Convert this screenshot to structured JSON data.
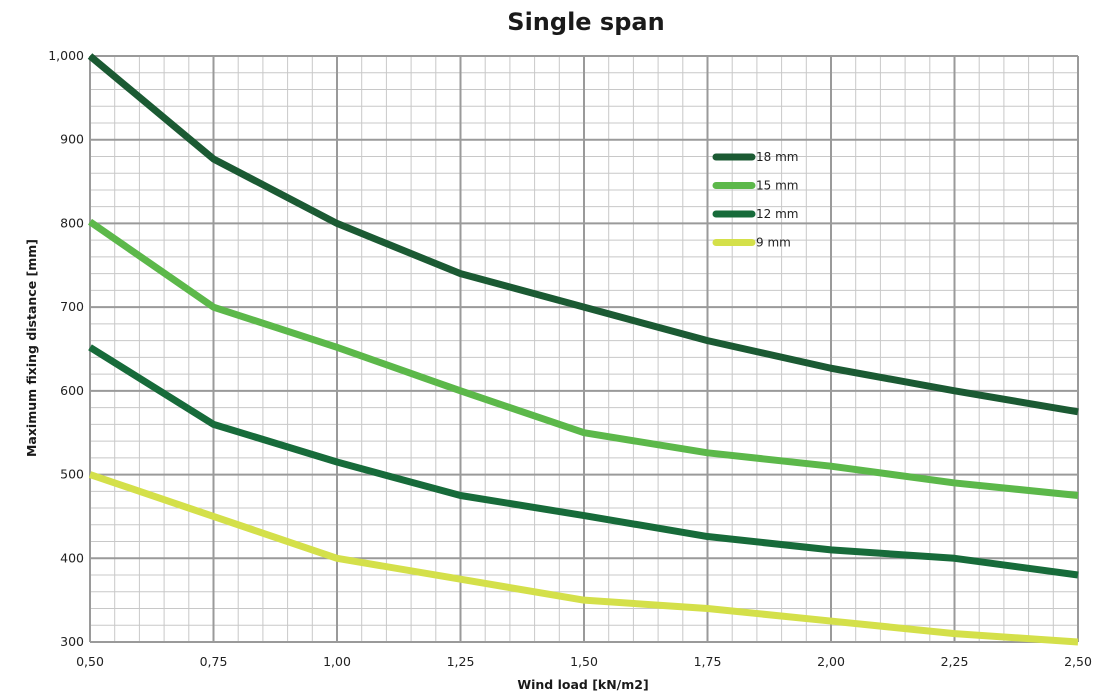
{
  "chart_data": {
    "type": "line",
    "title": "Single span",
    "xlabel": "Wind load [kN/m2]",
    "ylabel": "Maximum fixing distance [mm]",
    "x": [
      0.5,
      0.75,
      1.0,
      1.25,
      1.5,
      1.75,
      2.0,
      2.25,
      2.5
    ],
    "x_tick_labels": [
      "0,50",
      "0,75",
      "1,00",
      "1,25",
      "1,50",
      "1,75",
      "2,00",
      "2,25",
      "2,50"
    ],
    "xlim": [
      0.5,
      2.5
    ],
    "ylim": [
      300,
      1000
    ],
    "y_ticks": [
      300,
      400,
      500,
      600,
      700,
      800,
      900,
      1000
    ],
    "y_tick_labels": [
      "300",
      "400",
      "500",
      "600",
      "700",
      "800",
      "900",
      "1,000"
    ],
    "grid": true,
    "legend_position": "top-right",
    "series": [
      {
        "name": "18 mm",
        "color": "#1b5a33",
        "values": [
          1000,
          877,
          800,
          740,
          700,
          660,
          627,
          600,
          575
        ]
      },
      {
        "name": "15 mm",
        "color": "#5cb84a",
        "values": [
          802,
          700,
          652,
          600,
          550,
          526,
          510,
          490,
          475
        ]
      },
      {
        "name": "12 mm",
        "color": "#176b3a",
        "values": [
          652,
          560,
          515,
          475,
          451,
          426,
          410,
          400,
          380
        ]
      },
      {
        "name": "9 mm",
        "color": "#d4e04a",
        "values": [
          500,
          450,
          400,
          375,
          350,
          340,
          325,
          310,
          300
        ]
      }
    ]
  }
}
